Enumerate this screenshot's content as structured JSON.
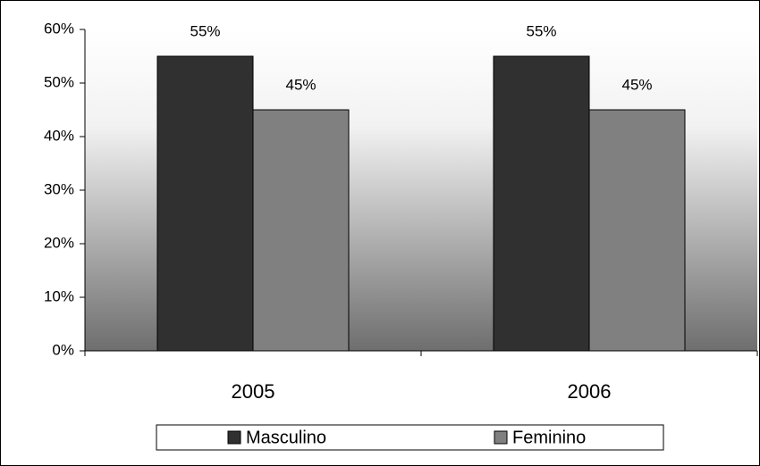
{
  "chart_data": {
    "type": "bar",
    "categories": [
      "2005",
      "2006"
    ],
    "series": [
      {
        "name": "Masculino",
        "color": "#303030",
        "values": [
          55,
          55
        ],
        "value_labels": [
          "55%",
          "55%"
        ]
      },
      {
        "name": "Feminino",
        "color": "#808080",
        "values": [
          45,
          45
        ],
        "value_labels": [
          "45%",
          "45%"
        ]
      }
    ],
    "ylim": [
      0,
      60
    ],
    "yticks": [
      {
        "value": 0,
        "label": "0%"
      },
      {
        "value": 10,
        "label": "10%"
      },
      {
        "value": 20,
        "label": "20%"
      },
      {
        "value": 30,
        "label": "30%"
      },
      {
        "value": 40,
        "label": "40%"
      },
      {
        "value": 50,
        "label": "50%"
      },
      {
        "value": 60,
        "label": "60%"
      }
    ],
    "legend": "bottom"
  }
}
